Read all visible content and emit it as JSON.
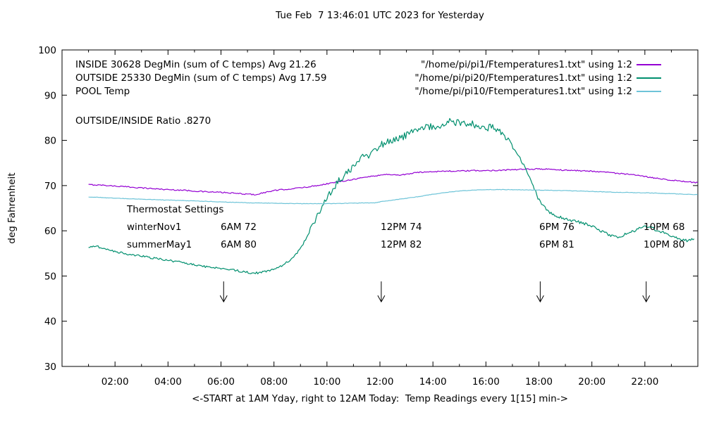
{
  "title": "Tue Feb  7 13:46:01 UTC 2023 for Yesterday",
  "chart_data": {
    "type": "line",
    "title": "Tue Feb  7 13:46:01 UTC 2023 for Yesterday",
    "xlabel": "<-START at 1AM Yday, right to 12AM Today:  Temp Readings every 1[15] min->",
    "ylabel": "deg Fahrenheit",
    "xlim": [
      0,
      24
    ],
    "ylim": [
      30,
      100
    ],
    "grid": false,
    "legend_position": "top-right-inside",
    "x_ticks": [
      {
        "h": 2,
        "label": "02:00"
      },
      {
        "h": 4,
        "label": "04:00"
      },
      {
        "h": 6,
        "label": "06:00"
      },
      {
        "h": 8,
        "label": "08:00"
      },
      {
        "h": 10,
        "label": "10:00"
      },
      {
        "h": 12,
        "label": "12:00"
      },
      {
        "h": 14,
        "label": "14:00"
      },
      {
        "h": 16,
        "label": "16:00"
      },
      {
        "h": 18,
        "label": "18:00"
      },
      {
        "h": 20,
        "label": "20:00"
      },
      {
        "h": 22,
        "label": "22:00"
      }
    ],
    "y_ticks": [
      {
        "v": 30,
        "label": "30"
      },
      {
        "v": 40,
        "label": "40"
      },
      {
        "v": 50,
        "label": "50"
      },
      {
        "v": 60,
        "label": "60"
      },
      {
        "v": 70,
        "label": "70"
      },
      {
        "v": 80,
        "label": "80"
      },
      {
        "v": 90,
        "label": "90"
      },
      {
        "v": 100,
        "label": "100"
      }
    ],
    "series": [
      {
        "name": "INSIDE",
        "label": "INSIDE 30628 DegMin (sum of C temps) Avg 21.26",
        "legend_title": "\"/home/pi/pi1/Ftemperatures1.txt\" using 1:2",
        "color": "#9400d3",
        "noise": [
          [
            0,
            0.13
          ],
          [
            24,
            0.13
          ]
        ],
        "points": [
          [
            1,
            70.2
          ],
          [
            1.5,
            70.1
          ],
          [
            2,
            69.9
          ],
          [
            2.5,
            69.7
          ],
          [
            3,
            69.5
          ],
          [
            3.5,
            69.3
          ],
          [
            4,
            69.1
          ],
          [
            4.5,
            69.0
          ],
          [
            5,
            68.8
          ],
          [
            5.5,
            68.6
          ],
          [
            6,
            68.5
          ],
          [
            6.5,
            68.3
          ],
          [
            7,
            68.1
          ],
          [
            7.3,
            68.0
          ],
          [
            7.6,
            68.4
          ],
          [
            8,
            68.9
          ],
          [
            8.5,
            69.2
          ],
          [
            9,
            69.5
          ],
          [
            9.5,
            69.9
          ],
          [
            10,
            70.4
          ],
          [
            10.5,
            70.9
          ],
          [
            11,
            71.4
          ],
          [
            11.5,
            71.9
          ],
          [
            12,
            72.3
          ],
          [
            12.3,
            72.5
          ],
          [
            12.7,
            72.3
          ],
          [
            13,
            72.5
          ],
          [
            13.4,
            72.9
          ],
          [
            14,
            73.1
          ],
          [
            14.5,
            73.2
          ],
          [
            15,
            73.2
          ],
          [
            15.5,
            73.3
          ],
          [
            16,
            73.3
          ],
          [
            16.5,
            73.4
          ],
          [
            17,
            73.5
          ],
          [
            17.5,
            73.6
          ],
          [
            18,
            73.7
          ],
          [
            18.4,
            73.6
          ],
          [
            19,
            73.4
          ],
          [
            19.5,
            73.3
          ],
          [
            20,
            73.2
          ],
          [
            20.5,
            73.0
          ],
          [
            21,
            72.7
          ],
          [
            21.5,
            72.4
          ],
          [
            22,
            72.0
          ],
          [
            22.5,
            71.6
          ],
          [
            23,
            71.2
          ],
          [
            23.5,
            70.9
          ],
          [
            24,
            70.6
          ]
        ]
      },
      {
        "name": "OUTSIDE",
        "label": "OUTSIDE 25330 DegMin (sum of C temps) Avg 17.59",
        "legend_title": "\"/home/pi/pi20/Ftemperatures1.txt\" using 1:2",
        "color": "#008f6e",
        "noise": [
          [
            0,
            0.2
          ],
          [
            9,
            0.25
          ],
          [
            10,
            0.9
          ],
          [
            16,
            0.9
          ],
          [
            17.2,
            0.35
          ],
          [
            24,
            0.3
          ]
        ],
        "points": [
          [
            1,
            56.4
          ],
          [
            1.3,
            56.6
          ],
          [
            1.6,
            56.0
          ],
          [
            2,
            55.4
          ],
          [
            2.5,
            54.8
          ],
          [
            3,
            54.4
          ],
          [
            3.5,
            53.9
          ],
          [
            4,
            53.5
          ],
          [
            4.5,
            53.0
          ],
          [
            5,
            52.5
          ],
          [
            5.5,
            52.0
          ],
          [
            6,
            51.7
          ],
          [
            6.4,
            51.4
          ],
          [
            6.8,
            51.0
          ],
          [
            7.1,
            50.7
          ],
          [
            7.4,
            50.7
          ],
          [
            7.7,
            51.0
          ],
          [
            8,
            51.6
          ],
          [
            8.3,
            52.3
          ],
          [
            8.6,
            53.4
          ],
          [
            9,
            56.0
          ],
          [
            9.3,
            59.5
          ],
          [
            9.6,
            62.8
          ],
          [
            9.9,
            66.0
          ],
          [
            10.2,
            69.3
          ],
          [
            10.5,
            71.3
          ],
          [
            10.8,
            72.8
          ],
          [
            11.1,
            74.8
          ],
          [
            11.4,
            76.3
          ],
          [
            11.7,
            77.4
          ],
          [
            12,
            78.9
          ],
          [
            12.3,
            80.1
          ],
          [
            12.6,
            79.9
          ],
          [
            12.9,
            80.7
          ],
          [
            13.2,
            81.7
          ],
          [
            13.5,
            82.5
          ],
          [
            13.8,
            83.0
          ],
          [
            14.1,
            83.3
          ],
          [
            14.4,
            83.7
          ],
          [
            14.7,
            84.2
          ],
          [
            15,
            83.8
          ],
          [
            15.3,
            84.0
          ],
          [
            15.6,
            83.3
          ],
          [
            15.9,
            82.8
          ],
          [
            16.2,
            83.0
          ],
          [
            16.5,
            82.1
          ],
          [
            16.8,
            80.4
          ],
          [
            17.1,
            77.9
          ],
          [
            17.4,
            74.9
          ],
          [
            17.7,
            71.4
          ],
          [
            18,
            66.8
          ],
          [
            18.3,
            64.5
          ],
          [
            18.7,
            63.1
          ],
          [
            19,
            62.6
          ],
          [
            19.4,
            62.1
          ],
          [
            19.8,
            61.5
          ],
          [
            20.2,
            60.4
          ],
          [
            20.6,
            59.2
          ],
          [
            21,
            58.6
          ],
          [
            21.4,
            59.6
          ],
          [
            21.8,
            60.5
          ],
          [
            22.1,
            61.0
          ],
          [
            22.4,
            60.3
          ],
          [
            22.8,
            59.3
          ],
          [
            23.2,
            58.4
          ],
          [
            23.6,
            57.8
          ],
          [
            23.9,
            58.2
          ]
        ]
      },
      {
        "name": "POOL",
        "label": "POOL Temp",
        "legend_title": "\"/home/pi/pi10/Ftemperatures1.txt\" using 1:2",
        "color": "#6ec4d8",
        "noise": [
          [
            0,
            0.05
          ],
          [
            24,
            0.05
          ]
        ],
        "points": [
          [
            1,
            67.5
          ],
          [
            2,
            67.2
          ],
          [
            3,
            67.0
          ],
          [
            4,
            66.8
          ],
          [
            5,
            66.6
          ],
          [
            6,
            66.4
          ],
          [
            7,
            66.2
          ],
          [
            8,
            66.1
          ],
          [
            9,
            66.0
          ],
          [
            10,
            66.0
          ],
          [
            11,
            66.1
          ],
          [
            11.8,
            66.2
          ],
          [
            12.1,
            66.5
          ],
          [
            12.5,
            66.8
          ],
          [
            13,
            67.2
          ],
          [
            13.5,
            67.6
          ],
          [
            14,
            68.1
          ],
          [
            14.5,
            68.5
          ],
          [
            15,
            68.8
          ],
          [
            15.5,
            69.0
          ],
          [
            16,
            69.1
          ],
          [
            17,
            69.1
          ],
          [
            18,
            69.0
          ],
          [
            19,
            68.9
          ],
          [
            20,
            68.7
          ],
          [
            21,
            68.5
          ],
          [
            22,
            68.4
          ],
          [
            23,
            68.2
          ],
          [
            24,
            68.0
          ]
        ]
      }
    ],
    "labels": {
      "ratio": "OUTSIDE/INSIDE Ratio .8270",
      "thermostat_heading": "Thermostat Settings",
      "thermostat_rows": [
        {
          "name": "winterNov1",
          "settings": [
            "6AM 72",
            "12PM 74",
            "6PM 76",
            "10PM 68"
          ]
        },
        {
          "name": "summerMay1",
          "settings": [
            "6AM 80",
            "12PM 82",
            "6PM 81",
            "10PM 80"
          ]
        }
      ]
    },
    "arrows": {
      "hours": [
        6.1,
        12.05,
        18.05,
        22.05
      ],
      "y_top": 48.8,
      "y_tip": 44.3
    }
  }
}
